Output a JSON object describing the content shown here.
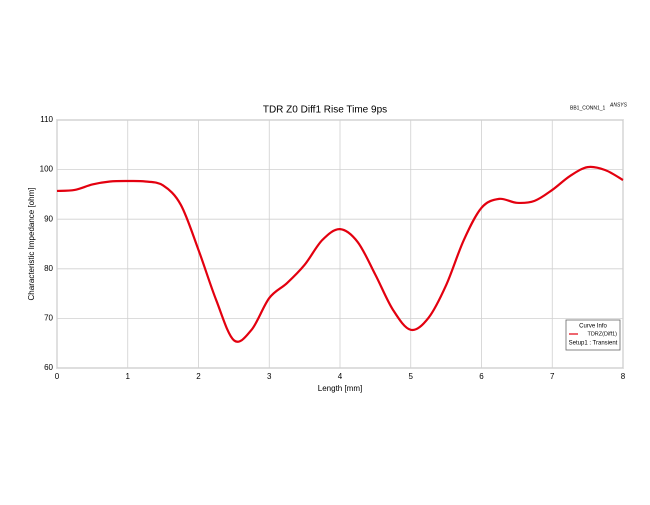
{
  "chart_data": {
    "type": "line",
    "title": "TDR Z0 Diff1 Rise Time 9ps",
    "annotations": [
      "BB1_CONN1_1",
      "ANSYS"
    ],
    "xlabel": "Length [mm]",
    "ylabel": "Characteristic Impedance [ohm]",
    "x": [
      0,
      0.25,
      0.5,
      0.75,
      1.0,
      1.25,
      1.5,
      1.75,
      2.0,
      2.25,
      2.5,
      2.75,
      3.0,
      3.25,
      3.5,
      3.75,
      4.0,
      4.25,
      4.5,
      4.75,
      5.0,
      5.25,
      5.5,
      5.75,
      6.0,
      6.25,
      6.5,
      6.75,
      7.0,
      7.25,
      7.5,
      7.75,
      8.0
    ],
    "series": [
      {
        "name": "TDRZ(Diff1)",
        "color": "#e3000f",
        "values": [
          95.7,
          95.9,
          97.0,
          97.6,
          97.7,
          97.6,
          96.8,
          92.9,
          83.8,
          73.7,
          65.6,
          67.7,
          74.1,
          77.1,
          80.8,
          85.8,
          88.0,
          85.4,
          78.8,
          71.7,
          67.7,
          70.1,
          76.7,
          85.8,
          92.3,
          94.1,
          93.3,
          93.7,
          95.9,
          98.7,
          100.5,
          99.9,
          97.9
        ]
      }
    ],
    "legend_title": "Curve Info",
    "legend_subtitle": "Setup1 : Transient",
    "legend_position": "lower right",
    "xlim": [
      0,
      8
    ],
    "xticks": [
      0,
      1,
      2,
      3,
      4,
      5,
      6,
      7,
      8
    ],
    "ylim": [
      60,
      110
    ],
    "yticks": [
      60,
      70,
      80,
      90,
      100,
      110
    ],
    "grid": true
  }
}
